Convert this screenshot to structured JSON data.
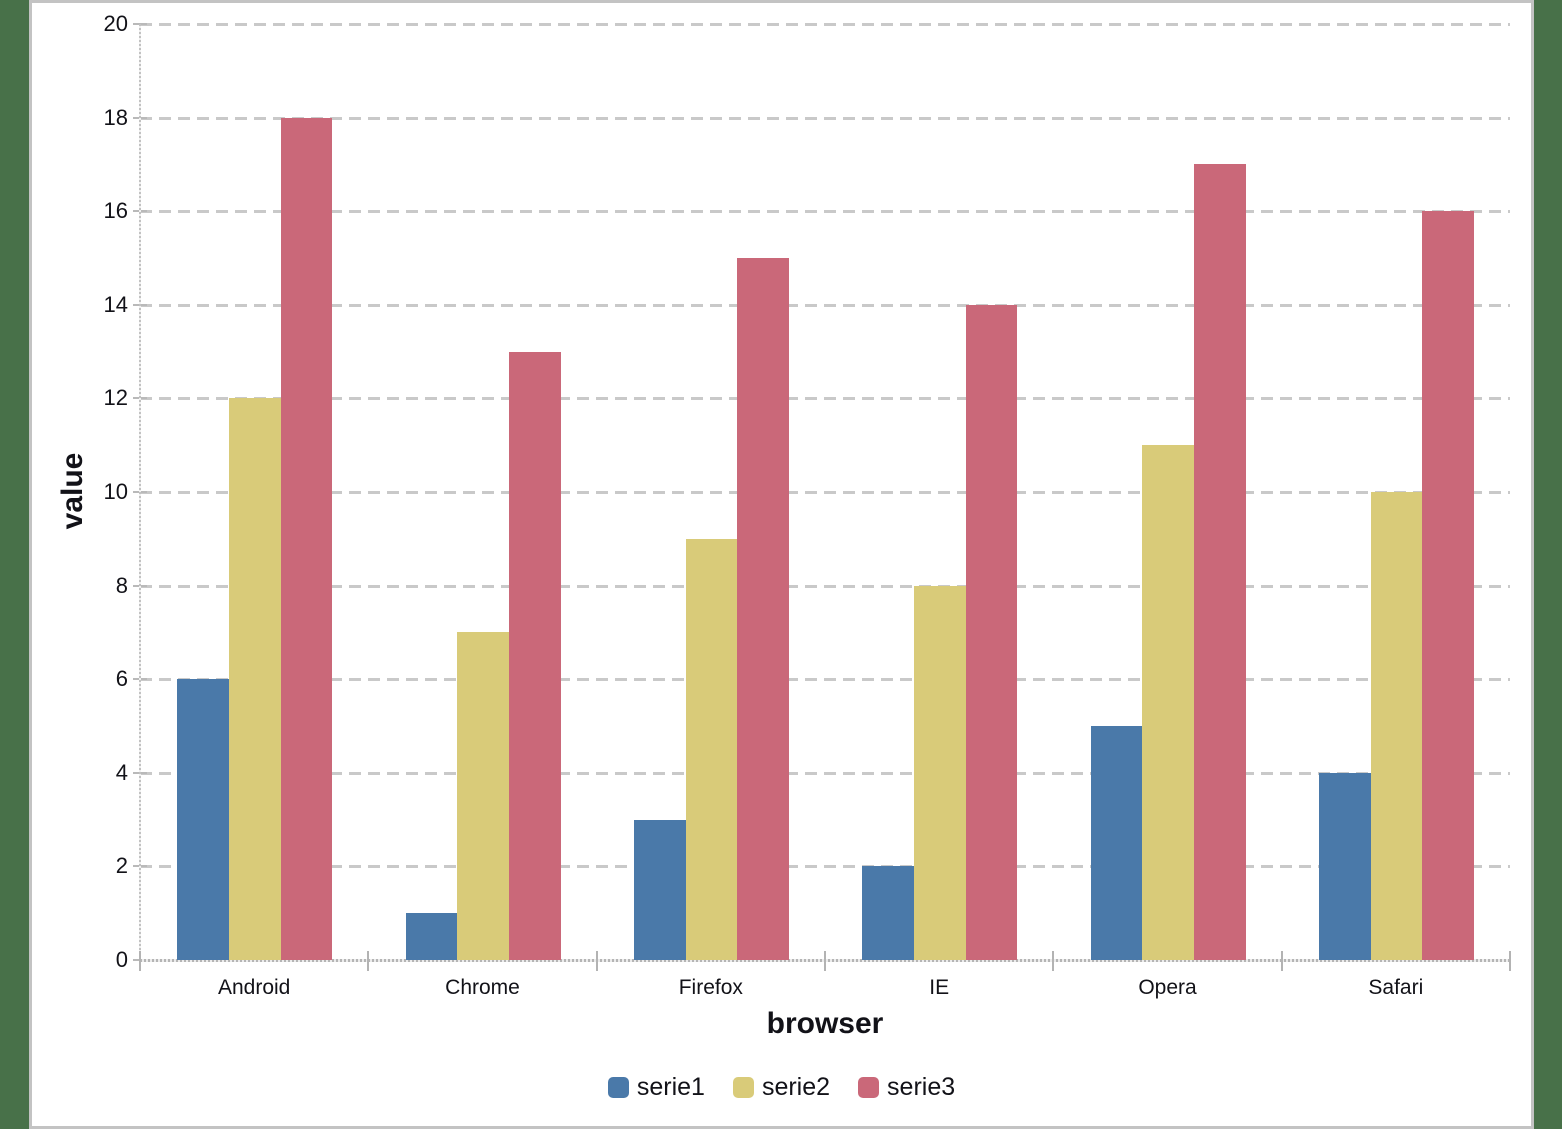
{
  "frame": {
    "background_color": "#487149",
    "panel_background": "#ffffff",
    "panel_border_color": "#c3c3c3"
  },
  "chart_data": {
    "type": "bar",
    "xlabel": "browser",
    "ylabel": "value",
    "categories": [
      "Android",
      "Chrome",
      "Firefox",
      "IE",
      "Opera",
      "Safari"
    ],
    "series": [
      {
        "name": "serie1",
        "color": "#4a79a9",
        "values": [
          6,
          1,
          3,
          2,
          5,
          4
        ]
      },
      {
        "name": "serie2",
        "color": "#d9cb79",
        "values": [
          12,
          7,
          9,
          8,
          11,
          10
        ]
      },
      {
        "name": "serie3",
        "color": "#ca6879",
        "values": [
          18,
          13,
          15,
          14,
          17,
          16
        ]
      }
    ],
    "ylim": [
      0,
      20
    ],
    "ytick_interval": 2,
    "ytick_labels": [
      "0",
      "2",
      "4",
      "6",
      "8",
      "10",
      "12",
      "14",
      "16",
      "18",
      "20"
    ],
    "grid": {
      "horizontal_dashed": true,
      "color": "#c9c9c9"
    },
    "legend": {
      "position": "bottom",
      "entries": [
        "serie1",
        "serie2",
        "serie3"
      ]
    }
  }
}
